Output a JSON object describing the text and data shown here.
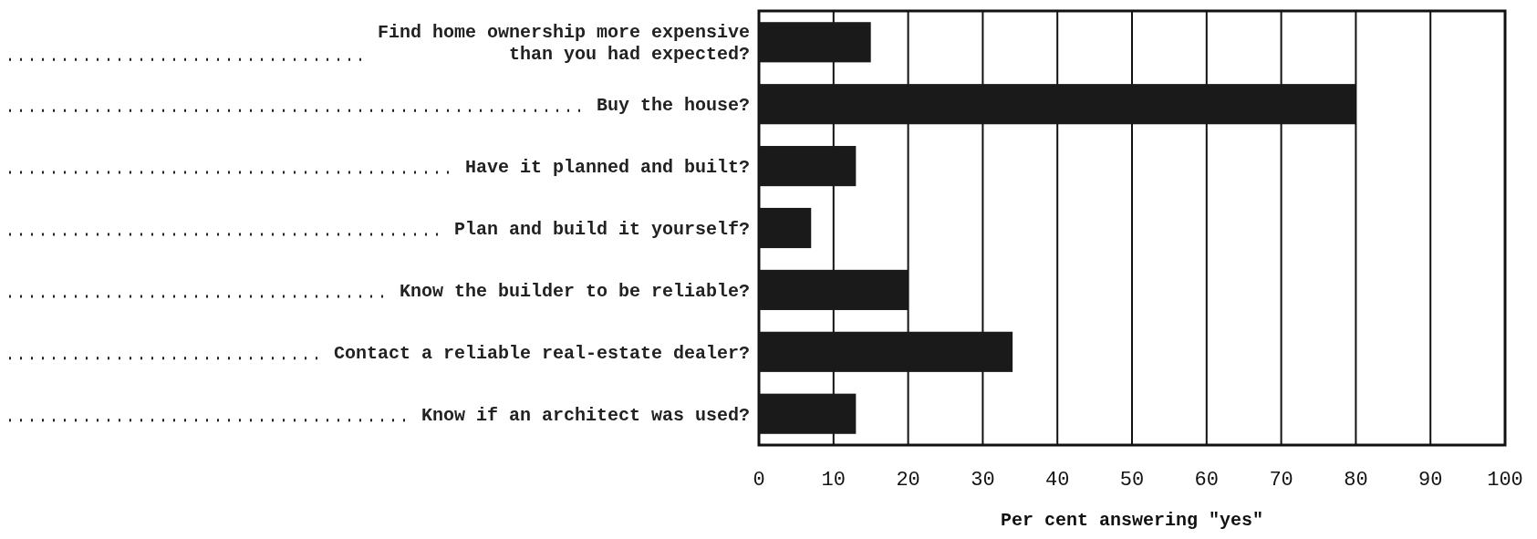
{
  "chart_data": {
    "type": "bar",
    "orientation": "horizontal",
    "categories": [
      "Find home ownership more expensive\nthan you had expected?",
      "Buy the house?",
      "Have it planned and built?",
      "Plan and build it yourself?",
      "Know the builder to be reliable?",
      "Contact a reliable real-estate dealer?",
      "Know if an architect was used?"
    ],
    "values": [
      15,
      80,
      13,
      7,
      20,
      34,
      13
    ],
    "color": "#1a1a1a",
    "xlim": [
      0,
      100
    ],
    "xticks": [
      0,
      10,
      20,
      30,
      40,
      50,
      60,
      70,
      80,
      90,
      100
    ],
    "xlabel": "Per cent answering \"yes\"",
    "grid": "x"
  }
}
